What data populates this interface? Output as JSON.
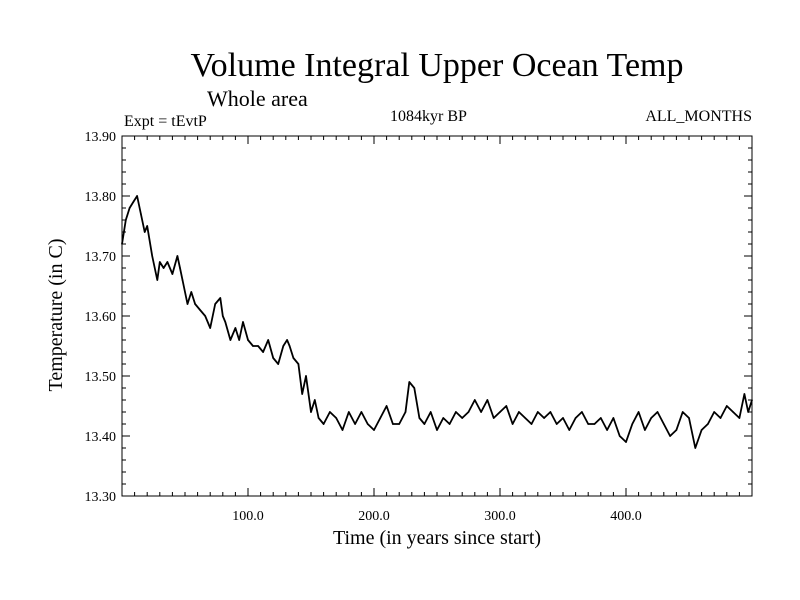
{
  "chart_data": {
    "type": "line",
    "title": "Volume Integral Upper Ocean Temp",
    "subtitle": "Whole area",
    "expt_label": "Expt = tEvtP",
    "period_label": "1084kyr BP",
    "months_label": "ALL_MONTHS",
    "xlabel": "Time (in years since start)",
    "ylabel": "Temperature (in C)",
    "xlim": [
      0,
      500
    ],
    "ylim": [
      13.3,
      13.9
    ],
    "xticks": [
      100,
      200,
      300,
      400
    ],
    "xtick_labels": [
      "100.0",
      "200.0",
      "300.0",
      "400.0"
    ],
    "yticks": [
      13.3,
      13.4,
      13.5,
      13.6,
      13.7,
      13.8,
      13.9
    ],
    "ytick_labels": [
      "13.30",
      "13.40",
      "13.50",
      "13.60",
      "13.70",
      "13.80",
      "13.90"
    ],
    "grid": false,
    "series": [
      {
        "name": "Temperature",
        "x": [
          0,
          3,
          6,
          9,
          12,
          15,
          18,
          20,
          24,
          28,
          30,
          33,
          36,
          40,
          44,
          46,
          48,
          52,
          55,
          58,
          62,
          66,
          70,
          74,
          78,
          80,
          82,
          86,
          90,
          93,
          96,
          100,
          104,
          108,
          112,
          116,
          120,
          124,
          128,
          131,
          133,
          136,
          140,
          143,
          146,
          150,
          153,
          156,
          160,
          165,
          170,
          175,
          180,
          185,
          190,
          195,
          200,
          205,
          210,
          215,
          220,
          225,
          228,
          232,
          236,
          240,
          245,
          250,
          255,
          260,
          265,
          270,
          275,
          280,
          285,
          290,
          295,
          300,
          305,
          310,
          315,
          320,
          325,
          330,
          335,
          340,
          345,
          350,
          355,
          360,
          365,
          370,
          375,
          380,
          385,
          390,
          395,
          400,
          405,
          410,
          415,
          420,
          425,
          430,
          435,
          440,
          445,
          450,
          455,
          460,
          465,
          470,
          475,
          480,
          485,
          490,
          494,
          497,
          500
        ],
        "values": [
          13.72,
          13.76,
          13.78,
          13.79,
          13.8,
          13.77,
          13.74,
          13.75,
          13.7,
          13.66,
          13.69,
          13.68,
          13.69,
          13.67,
          13.7,
          13.68,
          13.66,
          13.62,
          13.64,
          13.62,
          13.61,
          13.6,
          13.58,
          13.62,
          13.63,
          13.6,
          13.59,
          13.56,
          13.58,
          13.56,
          13.59,
          13.56,
          13.55,
          13.55,
          13.54,
          13.56,
          13.53,
          13.52,
          13.55,
          13.56,
          13.55,
          13.53,
          13.52,
          13.47,
          13.5,
          13.44,
          13.46,
          13.43,
          13.42,
          13.44,
          13.43,
          13.41,
          13.44,
          13.42,
          13.44,
          13.42,
          13.41,
          13.43,
          13.45,
          13.42,
          13.42,
          13.44,
          13.49,
          13.48,
          13.43,
          13.42,
          13.44,
          13.41,
          13.43,
          13.42,
          13.44,
          13.43,
          13.44,
          13.46,
          13.44,
          13.46,
          13.43,
          13.44,
          13.45,
          13.42,
          13.44,
          13.43,
          13.42,
          13.44,
          13.43,
          13.44,
          13.42,
          13.43,
          13.41,
          13.43,
          13.44,
          13.42,
          13.42,
          13.43,
          13.41,
          13.43,
          13.4,
          13.39,
          13.42,
          13.44,
          13.41,
          13.43,
          13.44,
          13.42,
          13.4,
          13.41,
          13.44,
          13.43,
          13.38,
          13.41,
          13.42,
          13.44,
          13.43,
          13.45,
          13.44,
          13.43,
          13.47,
          13.44,
          13.46
        ]
      }
    ]
  }
}
